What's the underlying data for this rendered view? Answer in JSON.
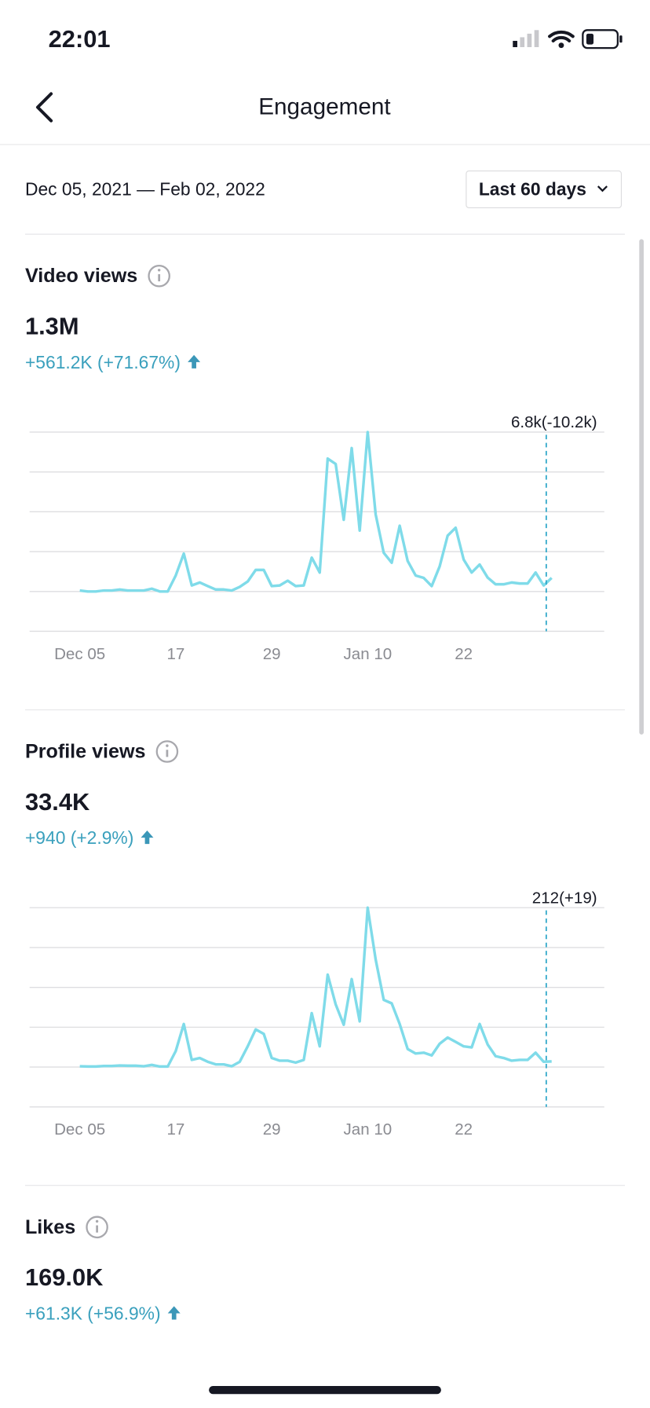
{
  "status_bar": {
    "time": "22:01"
  },
  "header": {
    "title": "Engagement"
  },
  "date_range": "Dec 05, 2021 — Feb 02, 2022",
  "range_selector": "Last 60 days",
  "chart_data": [
    {
      "type": "line",
      "title": "Video views",
      "total": "1.3M",
      "change": "+561.2K (+71.67%)",
      "annotation": "6.8k(-10.2k)",
      "color": "#7fdbe9",
      "ylim": [
        -20,
        80
      ],
      "yticks": [
        -20,
        0,
        20,
        40,
        60,
        80
      ],
      "grid": true,
      "categories": [
        "Dec 05",
        null,
        null,
        null,
        null,
        null,
        null,
        null,
        null,
        null,
        null,
        null,
        "17",
        null,
        null,
        null,
        null,
        null,
        null,
        null,
        null,
        null,
        null,
        null,
        "29",
        null,
        null,
        null,
        null,
        null,
        null,
        null,
        null,
        null,
        null,
        null,
        "Jan 10",
        null,
        null,
        null,
        null,
        null,
        null,
        null,
        null,
        null,
        null,
        null,
        "22",
        null,
        null,
        null,
        null,
        null,
        null,
        null,
        null,
        null,
        null,
        null
      ],
      "values": [
        0.5,
        0,
        0,
        0.5,
        0.5,
        1,
        0.5,
        0.5,
        0.5,
        1.4,
        0,
        0,
        8,
        19,
        3,
        4.5,
        2.7,
        1,
        1,
        0.5,
        2.3,
        5,
        10.8,
        10.8,
        2.7,
        3,
        5.4,
        2.7,
        3,
        17,
        9.5,
        66.7,
        64,
        36,
        72,
        30.6,
        80,
        38.7,
        19.4,
        14.4,
        33,
        15.3,
        8,
        6.8,
        2.7,
        12.6,
        28,
        32,
        16,
        9.5,
        13.5,
        7,
        3.6,
        3.6,
        4.5,
        4,
        4,
        9.5,
        3,
        6.8
      ]
    },
    {
      "type": "line",
      "title": "Profile views",
      "total": "33.4K",
      "change": "+940 (+2.9%)",
      "annotation": "212(+19)",
      "color": "#7fdbe9",
      "ylim": [
        -1500,
        6000
      ],
      "yticks": [
        -1500,
        0,
        1500,
        3000,
        4500,
        6000
      ],
      "grid": true,
      "categories": [
        "Dec 05",
        null,
        null,
        null,
        null,
        null,
        null,
        null,
        null,
        null,
        null,
        null,
        "17",
        null,
        null,
        null,
        null,
        null,
        null,
        null,
        null,
        null,
        null,
        null,
        "29",
        null,
        null,
        null,
        null,
        null,
        null,
        null,
        null,
        null,
        null,
        null,
        "Jan 10",
        null,
        null,
        null,
        null,
        null,
        null,
        null,
        null,
        null,
        null,
        null,
        "22",
        null,
        null,
        null,
        null,
        null,
        null,
        null,
        null,
        null,
        null,
        null
      ],
      "values": [
        30,
        20,
        20,
        40,
        40,
        60,
        50,
        50,
        30,
        80,
        20,
        20,
        600,
        1620,
        270,
        340,
        200,
        100,
        100,
        30,
        200,
        780,
        1420,
        1250,
        340,
        240,
        240,
        170,
        270,
        2030,
        780,
        3480,
        2360,
        1590,
        3310,
        1720,
        6000,
        4050,
        2530,
        2400,
        1620,
        680,
        510,
        540,
        440,
        880,
        1110,
        950,
        780,
        740,
        1620,
        850,
        410,
        340,
        240,
        270,
        270,
        540,
        200,
        212
      ]
    }
  ],
  "likes": {
    "title": "Likes",
    "total": "169.0K",
    "change": "+61.3K (+56.9%)"
  }
}
